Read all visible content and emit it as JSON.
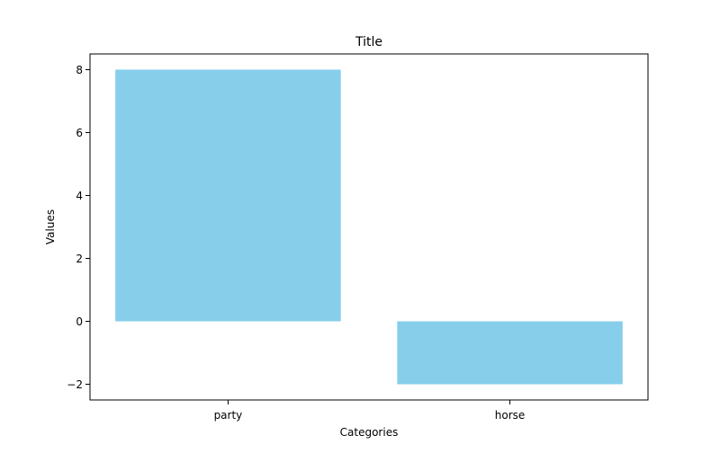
{
  "chart_data": {
    "type": "bar",
    "title": "Title",
    "xlabel": "Categories",
    "ylabel": "Values",
    "categories": [
      "party",
      "horse"
    ],
    "values": [
      8,
      -2
    ],
    "ylim": [
      -2.5,
      8.5
    ],
    "yticks": [
      -2,
      0,
      2,
      4,
      6,
      8
    ],
    "ytick_labels": [
      "−2",
      "0",
      "2",
      "4",
      "6",
      "8"
    ],
    "grid": false,
    "bar_color": "#87ceeb"
  }
}
